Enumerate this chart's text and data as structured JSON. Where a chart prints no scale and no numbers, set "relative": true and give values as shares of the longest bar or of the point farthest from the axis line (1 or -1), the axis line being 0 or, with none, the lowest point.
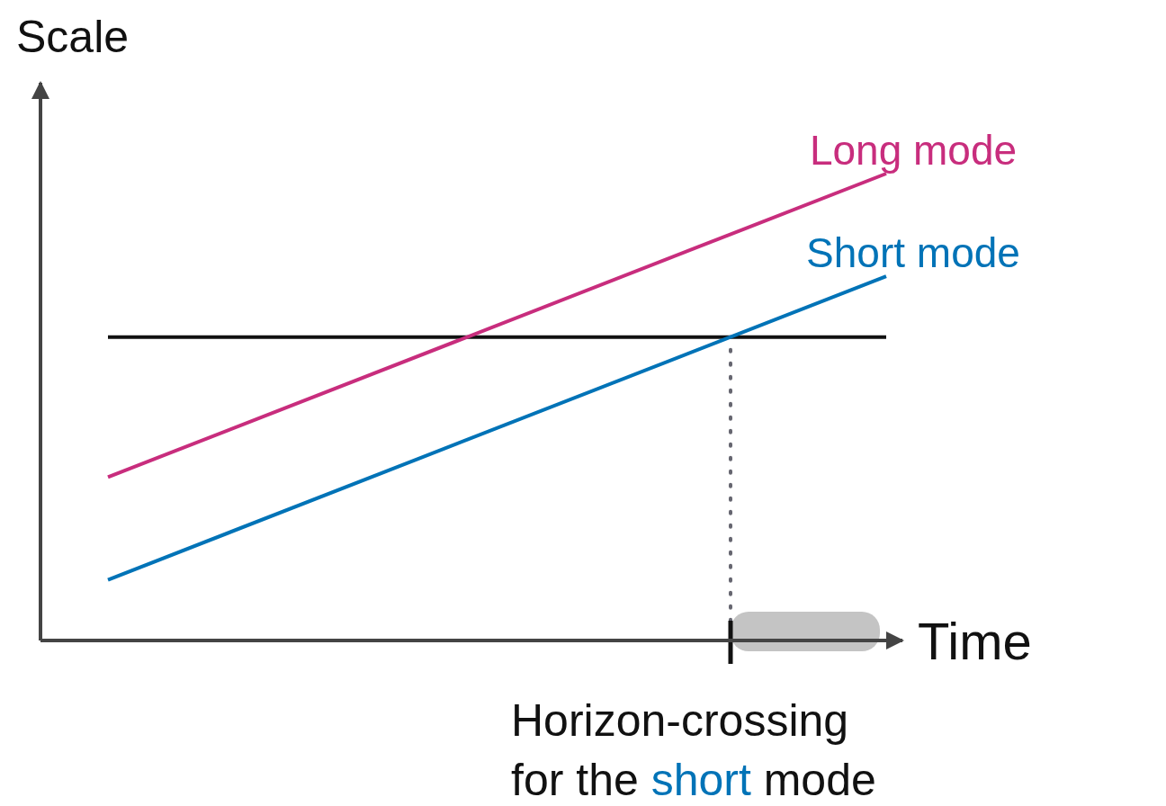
{
  "chart_data": {
    "type": "line",
    "relative": true,
    "xlabel": "Time",
    "ylabel": "Scale",
    "categories": [
      null,
      null
    ],
    "line_style": "solid",
    "series": [
      {
        "name": "Long mode",
        "color": "#c82d7d",
        "values": [
          0.35,
          1
        ]
      },
      {
        "name": "Short mode",
        "color": "#0073b7",
        "values": [
          0.13,
          0.78
        ]
      }
    ],
    "ref_lines": [
      {
        "axis": "y",
        "value": 0.65,
        "color": "#111111"
      }
    ],
    "annotations": [
      "Horizon-crossing for the short mode"
    ]
  }
}
